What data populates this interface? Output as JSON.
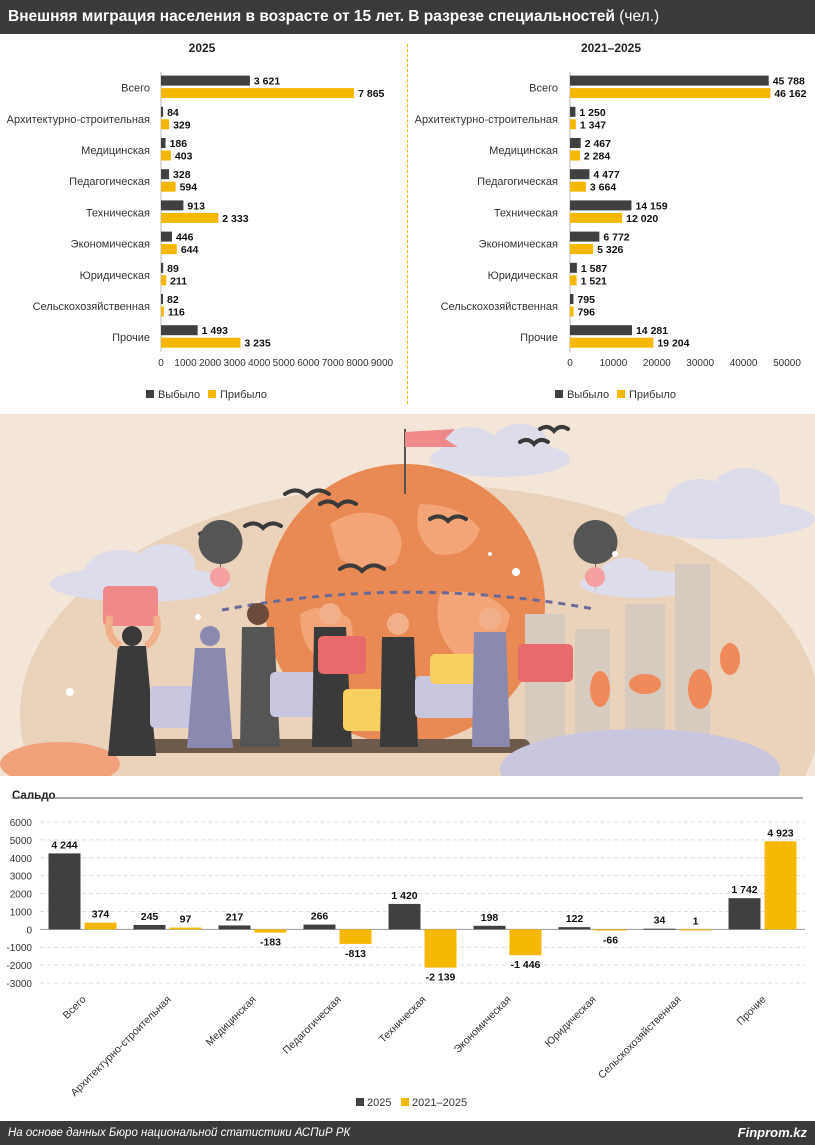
{
  "header": {
    "title": "Внешняя миграция населения в возрасте от 15 лет. В разрезе специальностей",
    "unit": "(чел.)"
  },
  "colors": {
    "left": "#404040",
    "arrived": "#f5b800",
    "header_bg": "#3a3a3a"
  },
  "categories": [
    "Всего",
    "Архитектурно-строительная",
    "Медицинская",
    "Педагогическая",
    "Техническая",
    "Экономическая",
    "Юридическая",
    "Сельскохозяйственная",
    "Прочие"
  ],
  "chart_data": [
    {
      "type": "bar",
      "orientation": "horizontal",
      "title": "2025",
      "series": [
        {
          "name": "Выбыло",
          "values": [
            3621,
            84,
            186,
            328,
            913,
            446,
            89,
            82,
            1493
          ],
          "labels": [
            "3 621",
            "84",
            "186",
            "328",
            "913",
            "446",
            "89",
            "82",
            "1 493"
          ]
        },
        {
          "name": "Прибыло",
          "values": [
            7865,
            329,
            403,
            594,
            2333,
            644,
            211,
            116,
            3235
          ],
          "labels": [
            "7 865",
            "329",
            "403",
            "594",
            "2 333",
            "644",
            "211",
            "116",
            "3 235"
          ]
        }
      ],
      "xlim": [
        0,
        9000
      ],
      "ticks": [
        0,
        1000,
        2000,
        3000,
        4000,
        5000,
        6000,
        7000,
        8000,
        9000
      ],
      "legend": "bottom"
    },
    {
      "type": "bar",
      "orientation": "horizontal",
      "title": "2021–2025",
      "series": [
        {
          "name": "Выбыло",
          "values": [
            45788,
            1250,
            2467,
            4477,
            14159,
            6772,
            1587,
            795,
            14281
          ],
          "labels": [
            "45 788",
            "1 250",
            "2 467",
            "4 477",
            "14 159",
            "6 772",
            "1 587",
            "795",
            "14 281"
          ]
        },
        {
          "name": "Прибыло",
          "values": [
            46162,
            1347,
            2284,
            3664,
            12020,
            5326,
            1521,
            796,
            19204
          ],
          "labels": [
            "46 162",
            "1 347",
            "2 284",
            "3 664",
            "12 020",
            "5 326",
            "1 521",
            "796",
            "19 204"
          ]
        }
      ],
      "xlim": [
        0,
        50000
      ],
      "ticks": [
        0,
        10000,
        20000,
        30000,
        40000,
        50000
      ],
      "legend": "bottom"
    },
    {
      "type": "bar",
      "title": "Сальдо",
      "series": [
        {
          "name": "2025",
          "values": [
            4244,
            245,
            217,
            266,
            1420,
            198,
            122,
            34,
            1742
          ],
          "labels": [
            "4 244",
            "245",
            "217",
            "266",
            "1 420",
            "198",
            "122",
            "34",
            "1 742"
          ]
        },
        {
          "name": "2021–2025",
          "values": [
            374,
            97,
            -183,
            -813,
            -2139,
            -1446,
            -66,
            1,
            4923
          ],
          "labels": [
            "374",
            "97",
            "-183",
            "-813",
            "-2 139",
            "-1 446",
            "-66",
            "1",
            "4 923"
          ]
        }
      ],
      "ylim": [
        -3000,
        6000
      ],
      "ticks": [
        6000,
        5000,
        4000,
        3000,
        2000,
        1000,
        0,
        -1000,
        -2000,
        -3000
      ],
      "tick_labels": [
        "6000",
        "5000",
        "4000",
        "3000",
        "2000",
        "1000",
        "0",
        "-1000",
        "-2000",
        "-3000"
      ],
      "legend": "bottom",
      "grid": true
    }
  ],
  "footer": {
    "source": "На основе данных Бюро национальной статистики АСПиР РК",
    "brand": "Finprom.kz"
  }
}
